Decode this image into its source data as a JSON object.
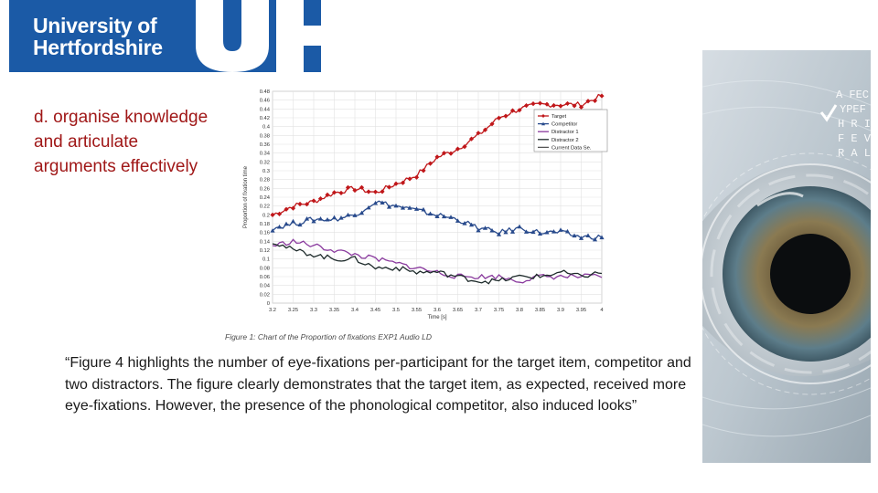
{
  "logo": {
    "line1": "University of",
    "line2": "Hertfordshire",
    "colors": {
      "brand": "#1b5aa6"
    }
  },
  "subtitle": {
    "lines": [
      "d. organise knowledge",
      "and articulate",
      "arguments effectively"
    ],
    "color": "#a01818"
  },
  "figure_caption": "Figure 1: Chart of the Proportion of fixations EXP1 Audio LD",
  "quote": "“Figure 4 highlights the number of eye-fixations per-participant for the target item, competitor and two distractors. The figure clearly demonstrates that the target item, as expected, received more eye-fixations. However, the presence of the phonological competitor, also induced looks”",
  "eye_image": {
    "overlay_text": [
      "A FEC",
      "YPEF",
      "H R I L",
      "F E V U",
      "R A L E"
    ]
  },
  "chart_data": {
    "type": "line",
    "xlabel": "Time [s]",
    "ylabel": "Proportion of fixation time",
    "xlim": [
      3.2,
      4.0
    ],
    "ylim": [
      0,
      0.48
    ],
    "xticks": [
      "3.2",
      "3.25",
      "3.3",
      "3.35",
      "3.4",
      "3.45",
      "3.5",
      "3.55",
      "3.6",
      "3.65",
      "3.7",
      "3.75",
      "3.8",
      "3.85",
      "3.9",
      "3.95",
      "4"
    ],
    "yticks": [
      "0",
      "0.02",
      "0.04",
      "0.06",
      "0.08",
      "0.1",
      "0.12",
      "0.14",
      "0.16",
      "0.18",
      "0.2",
      "0.22",
      "0.24",
      "0.26",
      "0.28",
      "0.3",
      "0.32",
      "0.34",
      "0.36",
      "0.38",
      "0.4",
      "0.42",
      "0.44",
      "0.46",
      "0.48"
    ],
    "grid": true,
    "legend_position": "right",
    "series": [
      {
        "name": "Target",
        "color": "#c0171a",
        "marker": "diamond",
        "x": [
          3.2,
          3.25,
          3.3,
          3.35,
          3.4,
          3.45,
          3.5,
          3.55,
          3.6,
          3.65,
          3.7,
          3.75,
          3.8,
          3.85,
          3.9,
          3.95,
          4.0
        ],
        "y": [
          0.2,
          0.22,
          0.23,
          0.25,
          0.26,
          0.25,
          0.27,
          0.29,
          0.33,
          0.35,
          0.38,
          0.42,
          0.44,
          0.45,
          0.45,
          0.45,
          0.47
        ]
      },
      {
        "name": "Competitor",
        "color": "#284a8c",
        "marker": "triangle",
        "x": [
          3.2,
          3.25,
          3.3,
          3.35,
          3.4,
          3.45,
          3.5,
          3.55,
          3.6,
          3.65,
          3.7,
          3.75,
          3.8,
          3.85,
          3.9,
          3.95,
          4.0
        ],
        "y": [
          0.17,
          0.18,
          0.19,
          0.19,
          0.2,
          0.23,
          0.22,
          0.21,
          0.2,
          0.19,
          0.17,
          0.16,
          0.17,
          0.16,
          0.16,
          0.15,
          0.15
        ]
      },
      {
        "name": "Distractor 1",
        "color": "#8a3a9e",
        "marker": "none",
        "x": [
          3.2,
          3.25,
          3.3,
          3.35,
          3.4,
          3.45,
          3.5,
          3.55,
          3.6,
          3.65,
          3.7,
          3.75,
          3.8,
          3.85,
          3.9,
          3.95,
          4.0
        ],
        "y": [
          0.13,
          0.14,
          0.13,
          0.12,
          0.11,
          0.1,
          0.09,
          0.08,
          0.07,
          0.06,
          0.06,
          0.06,
          0.05,
          0.06,
          0.06,
          0.06,
          0.06
        ]
      },
      {
        "name": "Distractor 2",
        "color": "#1d2a2a",
        "marker": "none",
        "x": [
          3.2,
          3.25,
          3.3,
          3.35,
          3.4,
          3.45,
          3.5,
          3.55,
          3.6,
          3.65,
          3.7,
          3.75,
          3.8,
          3.85,
          3.9,
          3.95,
          4.0
        ],
        "y": [
          0.14,
          0.12,
          0.11,
          0.1,
          0.1,
          0.08,
          0.08,
          0.07,
          0.07,
          0.06,
          0.05,
          0.05,
          0.06,
          0.06,
          0.07,
          0.06,
          0.07
        ]
      },
      {
        "name": "Current Data Se.",
        "color": "#555555",
        "marker": "none",
        "x": [],
        "y": []
      }
    ]
  }
}
